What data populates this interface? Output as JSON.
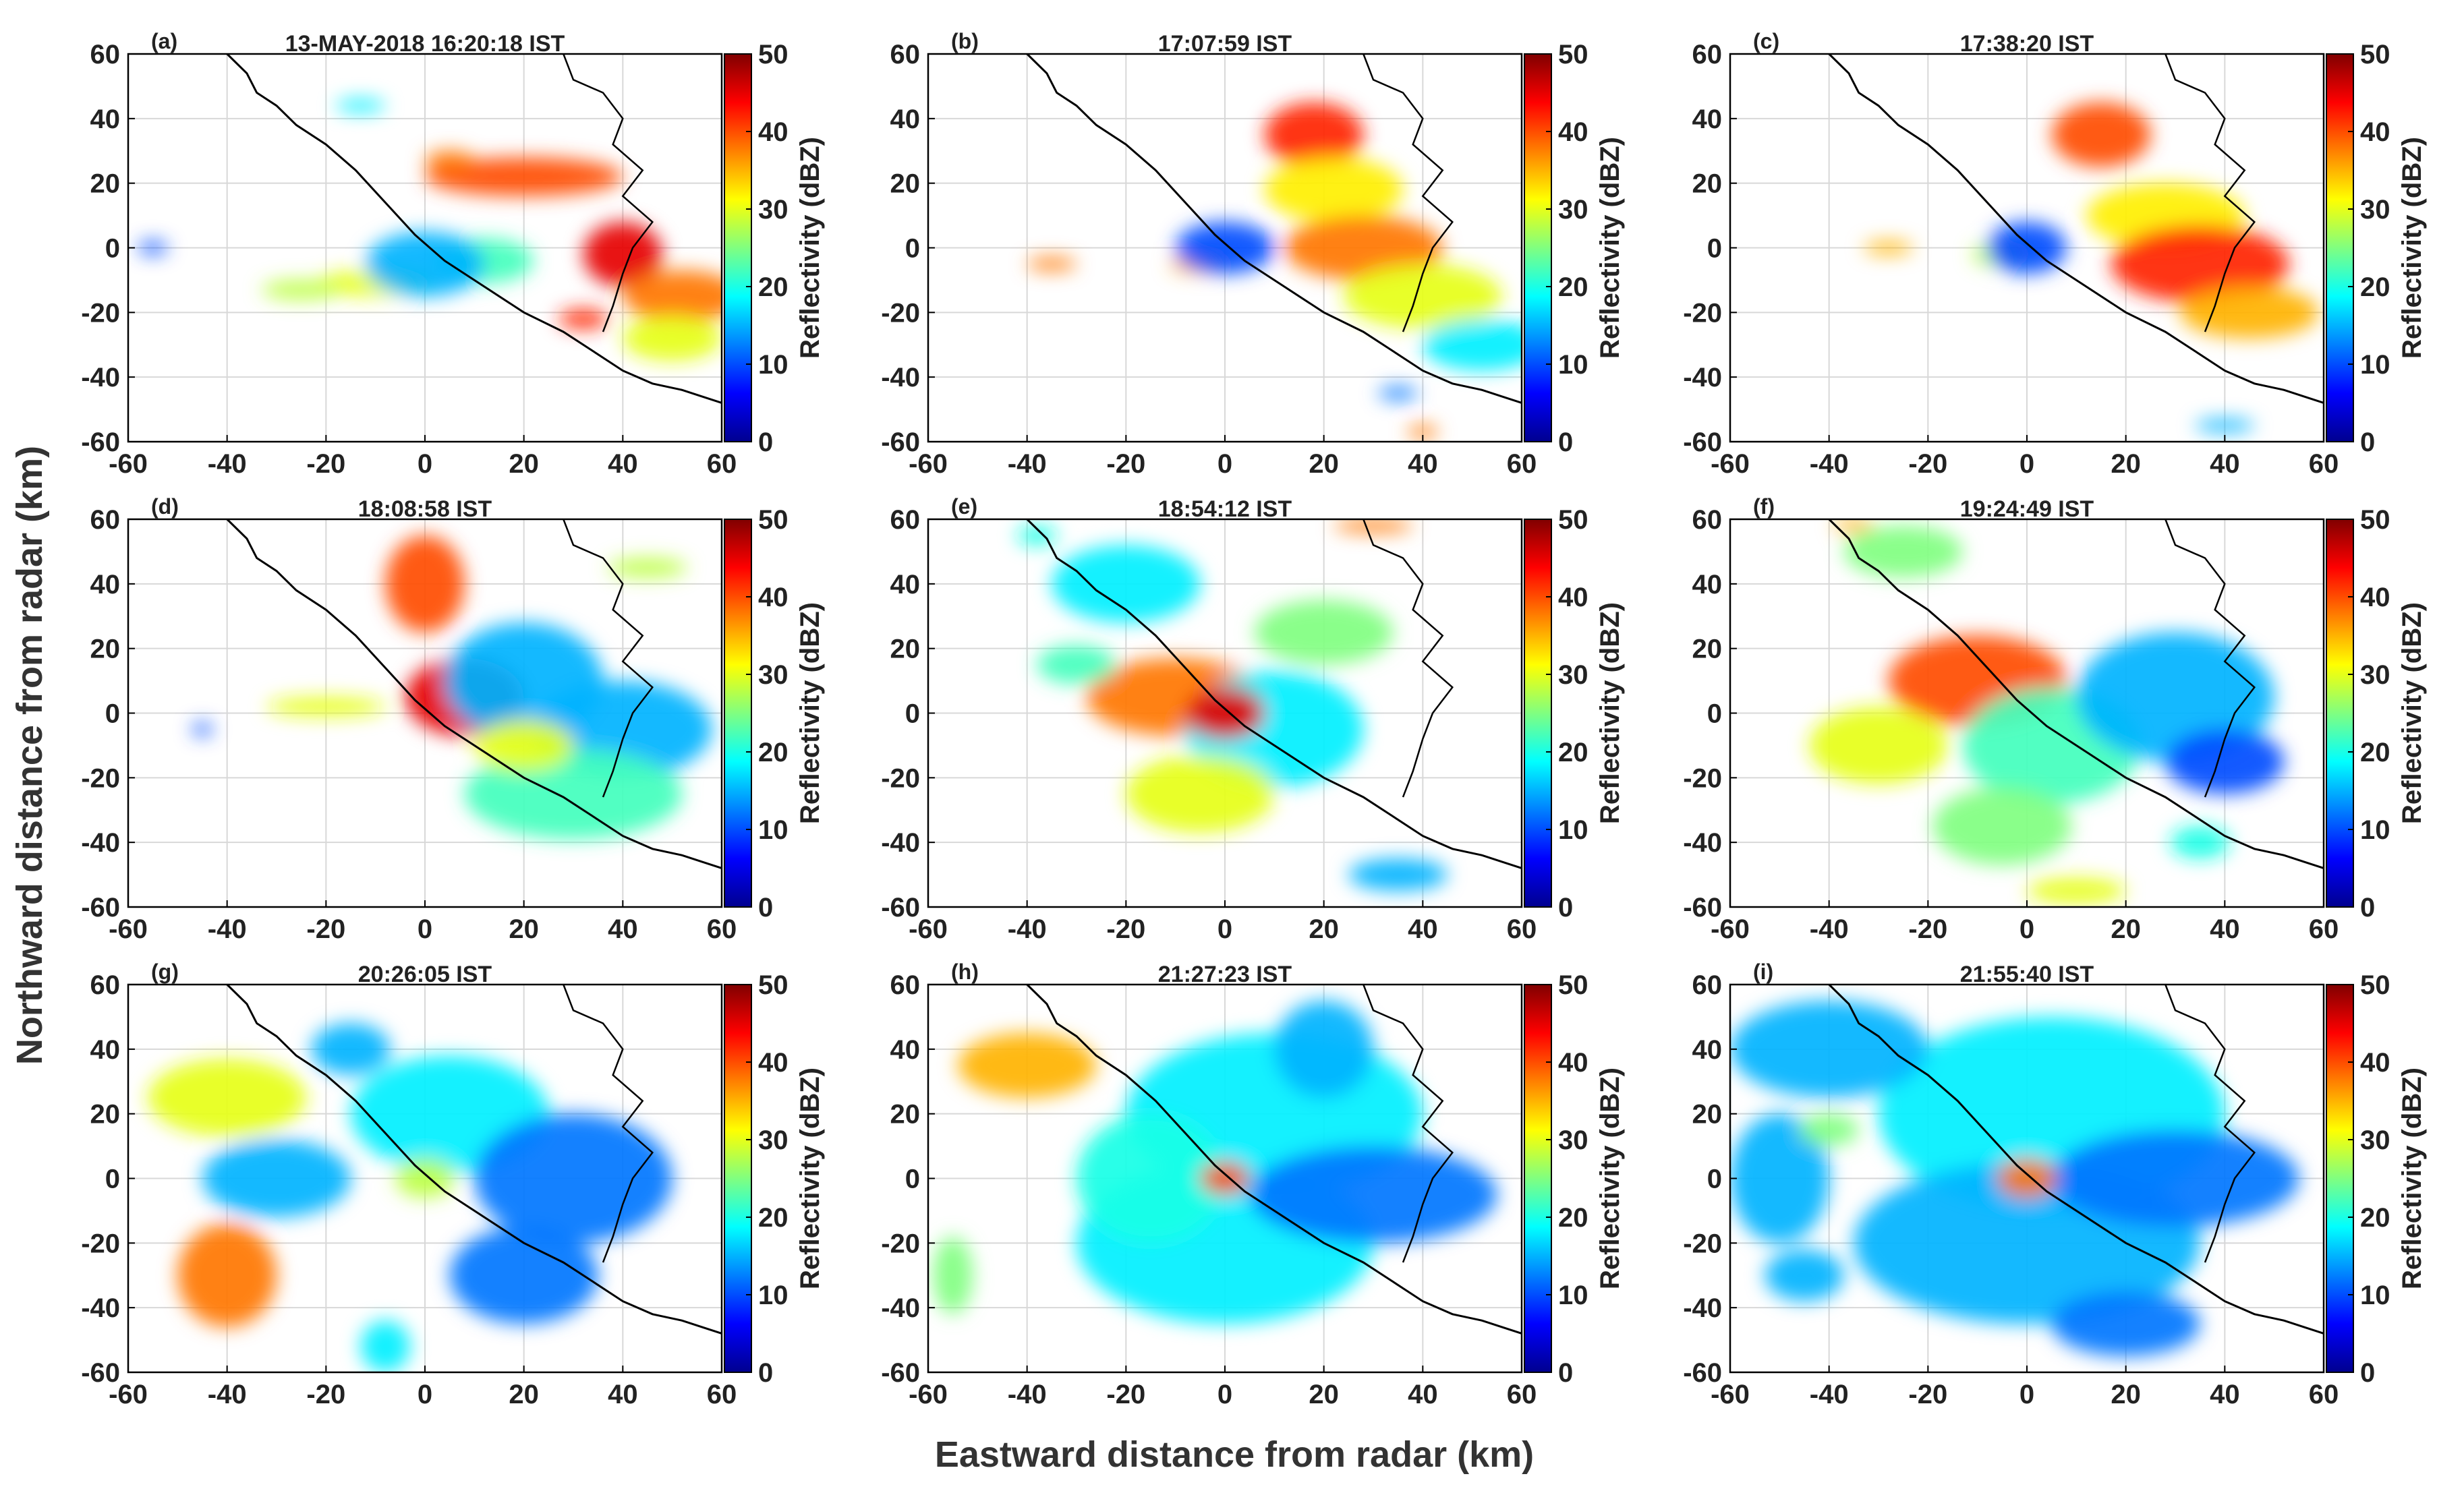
{
  "figure": {
    "ylabel": "Northward distance from radar (km)",
    "xlabel": "Eastward distance from radar (km)"
  },
  "chart_data": {
    "type": "heatmap",
    "xlim": [
      -60,
      60
    ],
    "ylim": [
      -60,
      60
    ],
    "xticks": [
      -60,
      -40,
      -20,
      0,
      20,
      40,
      60
    ],
    "yticks": [
      -60,
      -40,
      -20,
      0,
      20,
      40,
      60
    ],
    "grid": true,
    "colorbar": {
      "label": "Reflectivity (dBZ)",
      "range": [
        0,
        50
      ],
      "ticks": [
        0,
        10,
        20,
        30,
        40,
        50
      ],
      "colormap": "jet",
      "colors": [
        "#00008f",
        "#0000ff",
        "#0080ff",
        "#00ffff",
        "#80ff80",
        "#ffff00",
        "#ff8000",
        "#ff0000",
        "#800000"
      ]
    },
    "coastline_color": "#000000",
    "panels": [
      {
        "label": "(a)",
        "title": "13-MAY-2018 16:20:18 IST",
        "cells": [
          [
            -10,
            -11,
            12,
            4,
            30
          ],
          [
            12,
            -4,
            10,
            7,
            22
          ],
          [
            20,
            22,
            20,
            6,
            40
          ],
          [
            5,
            27,
            5,
            3,
            38
          ],
          [
            -13,
            44,
            5,
            2,
            18
          ],
          [
            40,
            -2,
            8,
            10,
            45
          ],
          [
            52,
            -15,
            12,
            8,
            38
          ],
          [
            50,
            -28,
            10,
            7,
            30
          ],
          [
            32,
            -22,
            5,
            3,
            42
          ],
          [
            -25,
            -13,
            8,
            3,
            28
          ],
          [
            0,
            -5,
            12,
            10,
            15
          ],
          [
            -55,
            0,
            3,
            2,
            10
          ]
        ]
      },
      {
        "label": "(b)",
        "title": "17:07:59 IST",
        "cells": [
          [
            18,
            35,
            10,
            10,
            42
          ],
          [
            22,
            18,
            14,
            10,
            32
          ],
          [
            28,
            0,
            16,
            10,
            38
          ],
          [
            40,
            -15,
            16,
            10,
            30
          ],
          [
            52,
            -30,
            12,
            8,
            18
          ],
          [
            -5,
            -5,
            6,
            3,
            35
          ],
          [
            -35,
            -5,
            5,
            2,
            38
          ],
          [
            40,
            -57,
            3,
            2,
            38
          ],
          [
            35,
            -45,
            4,
            2,
            12
          ],
          [
            0,
            0,
            10,
            8,
            10
          ]
        ]
      },
      {
        "label": "(c)",
        "title": "17:38:20 IST",
        "cells": [
          [
            15,
            35,
            10,
            10,
            40
          ],
          [
            28,
            10,
            16,
            10,
            32
          ],
          [
            35,
            -5,
            18,
            12,
            42
          ],
          [
            45,
            -20,
            14,
            8,
            35
          ],
          [
            -28,
            0,
            5,
            2,
            35
          ],
          [
            -5,
            -2,
            6,
            4,
            28
          ],
          [
            40,
            -55,
            6,
            2,
            15
          ],
          [
            0,
            0,
            8,
            8,
            10
          ]
        ]
      },
      {
        "label": "(d)",
        "title": "18:08:58 IST",
        "cells": [
          [
            0,
            40,
            8,
            15,
            40
          ],
          [
            8,
            5,
            12,
            12,
            45
          ],
          [
            20,
            10,
            16,
            18,
            15
          ],
          [
            40,
            -5,
            18,
            15,
            15
          ],
          [
            30,
            -25,
            22,
            14,
            22
          ],
          [
            -20,
            2,
            12,
            3,
            30
          ],
          [
            45,
            45,
            8,
            3,
            28
          ],
          [
            20,
            -10,
            10,
            8,
            30
          ],
          [
            -45,
            -5,
            2,
            2,
            10
          ]
        ]
      },
      {
        "label": "(e)",
        "title": "18:54:12 IST",
        "cells": [
          [
            -10,
            5,
            18,
            12,
            38
          ],
          [
            10,
            -5,
            18,
            18,
            18
          ],
          [
            -5,
            -25,
            15,
            12,
            30
          ],
          [
            -20,
            40,
            15,
            12,
            18
          ],
          [
            20,
            25,
            14,
            10,
            25
          ],
          [
            35,
            -50,
            10,
            5,
            15
          ],
          [
            30,
            58,
            8,
            2,
            38
          ],
          [
            -30,
            15,
            8,
            6,
            22
          ],
          [
            0,
            0,
            8,
            8,
            45
          ],
          [
            -38,
            55,
            4,
            3,
            20
          ]
        ]
      },
      {
        "label": "(f)",
        "title": "19:24:49 IST",
        "cells": [
          [
            -10,
            10,
            18,
            14,
            40
          ],
          [
            5,
            -10,
            18,
            18,
            22
          ],
          [
            30,
            5,
            20,
            20,
            15
          ],
          [
            40,
            -15,
            12,
            10,
            10
          ],
          [
            -30,
            -10,
            14,
            12,
            30
          ],
          [
            -5,
            -35,
            14,
            12,
            25
          ],
          [
            -25,
            50,
            12,
            8,
            25
          ],
          [
            -35,
            58,
            4,
            2,
            35
          ],
          [
            10,
            -55,
            10,
            4,
            30
          ],
          [
            35,
            -40,
            6,
            5,
            20
          ]
        ]
      },
      {
        "label": "(g)",
        "title": "20:26:05 IST",
        "cells": [
          [
            -40,
            25,
            16,
            12,
            30
          ],
          [
            -40,
            -30,
            10,
            16,
            38
          ],
          [
            5,
            20,
            20,
            18,
            18
          ],
          [
            30,
            0,
            20,
            20,
            12
          ],
          [
            20,
            -30,
            15,
            15,
            12
          ],
          [
            -30,
            0,
            15,
            12,
            15
          ],
          [
            -8,
            -52,
            5,
            8,
            18
          ],
          [
            0,
            0,
            6,
            6,
            28
          ],
          [
            -15,
            40,
            8,
            8,
            15
          ]
        ]
      },
      {
        "label": "(h)",
        "title": "21:27:23 IST",
        "cells": [
          [
            -40,
            35,
            14,
            10,
            35
          ],
          [
            10,
            20,
            30,
            25,
            18
          ],
          [
            0,
            -20,
            30,
            25,
            18
          ],
          [
            30,
            -5,
            25,
            15,
            12
          ],
          [
            -15,
            0,
            15,
            20,
            20
          ],
          [
            -55,
            -30,
            4,
            12,
            25
          ],
          [
            0,
            0,
            5,
            5,
            40
          ],
          [
            20,
            40,
            10,
            15,
            15
          ]
        ]
      },
      {
        "label": "(i)",
        "title": "21:55:40 IST",
        "cells": [
          [
            5,
            20,
            35,
            30,
            18
          ],
          [
            0,
            -20,
            35,
            25,
            15
          ],
          [
            -40,
            40,
            20,
            15,
            15
          ],
          [
            30,
            0,
            25,
            15,
            12
          ],
          [
            -50,
            0,
            10,
            20,
            15
          ],
          [
            -45,
            -30,
            8,
            8,
            15
          ],
          [
            20,
            -45,
            15,
            10,
            12
          ],
          [
            0,
            0,
            6,
            6,
            38
          ],
          [
            -40,
            15,
            6,
            5,
            25
          ]
        ]
      }
    ]
  }
}
